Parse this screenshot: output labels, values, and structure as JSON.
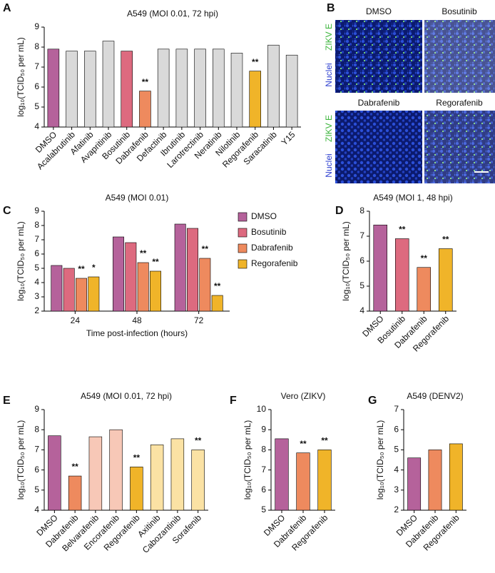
{
  "panel_letters": [
    "A",
    "B",
    "C",
    "D",
    "E",
    "F",
    "G"
  ],
  "micrographs": {
    "conditions": [
      "DMSO",
      "Bosutinib",
      "Dabrafenib",
      "Regorafenib"
    ],
    "stains": [
      "ZIKV E",
      "Nuclei"
    ]
  },
  "chart_data": [
    {
      "type": "bar",
      "title": "A549 (MOI 0.01, 72 hpi)",
      "y_label": "log₁₀(TCID₅₀ per mL)",
      "categories": [
        "DMSO",
        "Acalabrutinib",
        "Afatinib",
        "Avapritinib",
        "Bosutinib",
        "Dabrafenib",
        "Defactinib",
        "Ibrutinib",
        "Larotrectinib",
        "Neratinib",
        "Nilotinib",
        "Regorafenib",
        "Saracatinib",
        "Y15"
      ],
      "values": [
        7.9,
        7.8,
        7.8,
        8.3,
        7.8,
        5.8,
        7.9,
        7.9,
        7.9,
        7.9,
        7.7,
        6.8,
        8.1,
        7.6
      ],
      "colors": [
        "#b5629b",
        "#d9d9d9",
        "#d9d9d9",
        "#d9d9d9",
        "#dd6a7f",
        "#ee8a5e",
        "#d9d9d9",
        "#d9d9d9",
        "#d9d9d9",
        "#d9d9d9",
        "#d9d9d9",
        "#f0b429",
        "#d9d9d9",
        "#d9d9d9"
      ],
      "annotations": [
        null,
        null,
        null,
        null,
        null,
        "**",
        null,
        null,
        null,
        null,
        null,
        "**",
        null,
        null
      ],
      "ylim": [
        4,
        9
      ],
      "yticks": [
        4,
        5,
        6,
        7,
        8,
        9
      ]
    },
    {
      "type": "bar",
      "title": "A549 (MOI 0.01)",
      "y_label": "log₁₀(TCID₅₀ per mL)",
      "x_label": "Time post-infection (hours)",
      "categories": [
        "24",
        "48",
        "72"
      ],
      "series": [
        {
          "name": "DMSO",
          "color": "#b5629b",
          "values": [
            5.2,
            7.2,
            8.1
          ],
          "annotations": [
            null,
            null,
            null
          ]
        },
        {
          "name": "Bosutinib",
          "color": "#dd6a7f",
          "values": [
            5.0,
            6.8,
            7.8
          ],
          "annotations": [
            null,
            null,
            null
          ]
        },
        {
          "name": "Dabrafenib",
          "color": "#ee8a5e",
          "values": [
            4.3,
            5.4,
            5.7
          ],
          "annotations": [
            "**",
            "**",
            "**"
          ]
        },
        {
          "name": "Regorafenib",
          "color": "#f0b429",
          "values": [
            4.4,
            4.8,
            3.1
          ],
          "annotations": [
            "*",
            "**",
            "**"
          ]
        }
      ],
      "ylim": [
        2,
        9
      ],
      "yticks": [
        2,
        3,
        4,
        5,
        6,
        7,
        8,
        9
      ],
      "legend": "right"
    },
    {
      "type": "bar",
      "title": "A549 (MOI 1, 48 hpi)",
      "y_label": "log₁₀(TCID₅₀ per mL)",
      "categories": [
        "DMSO",
        "Bosutinib",
        "Dabrafenib",
        "Regorafenib"
      ],
      "values": [
        7.45,
        6.9,
        5.75,
        6.5
      ],
      "colors": [
        "#b5629b",
        "#dd6a7f",
        "#ee8a5e",
        "#f0b429"
      ],
      "annotations": [
        null,
        "**",
        "**",
        "**"
      ],
      "ylim": [
        4,
        8
      ],
      "yticks": [
        4,
        5,
        6,
        7,
        8
      ]
    },
    {
      "type": "bar",
      "title": "A549 (MOI 0.01, 72 hpi)",
      "y_label": "log₁₀(TCID₅₀ per mL)",
      "categories": [
        "DMSO",
        "Dabrafenib",
        "Belvarafenib",
        "Encorafenib",
        "Regorafenib",
        "Axitinib",
        "Cabozantinib",
        "Sorafenib"
      ],
      "values": [
        7.7,
        5.7,
        7.65,
        8.0,
        6.15,
        7.25,
        7.55,
        7.0
      ],
      "colors": [
        "#b5629b",
        "#ee8a5e",
        "#f7c8b7",
        "#f7c8b7",
        "#f0b429",
        "#fbe2a4",
        "#fbe2a4",
        "#fbe2a4"
      ],
      "annotations": [
        null,
        "**",
        null,
        null,
        "**",
        null,
        null,
        "**"
      ],
      "ylim": [
        4,
        9
      ],
      "yticks": [
        4,
        5,
        6,
        7,
        8,
        9
      ]
    },
    {
      "type": "bar",
      "title": "Vero (ZIKV)",
      "y_label": "log₁₀(TCID₅₀ per mL)",
      "categories": [
        "DMSO",
        "Dabrafenib",
        "Regorafenib"
      ],
      "values": [
        8.55,
        7.85,
        8.0
      ],
      "colors": [
        "#b5629b",
        "#ee8a5e",
        "#f0b429"
      ],
      "annotations": [
        null,
        "**",
        "**"
      ],
      "ylim": [
        5,
        10
      ],
      "yticks": [
        5,
        6,
        7,
        8,
        9,
        10
      ]
    },
    {
      "type": "bar",
      "title": "A549 (DENV2)",
      "y_label": "log₁₀(TCID₅₀ per mL)",
      "categories": [
        "DMSO",
        "Dabrafenib",
        "Regorafenib"
      ],
      "values": [
        4.6,
        5.0,
        5.3
      ],
      "colors": [
        "#b5629b",
        "#ee8a5e",
        "#f0b429"
      ],
      "annotations": [
        null,
        null,
        null
      ],
      "ylim": [
        2,
        7
      ],
      "yticks": [
        2,
        3,
        4,
        5,
        6,
        7
      ]
    }
  ]
}
